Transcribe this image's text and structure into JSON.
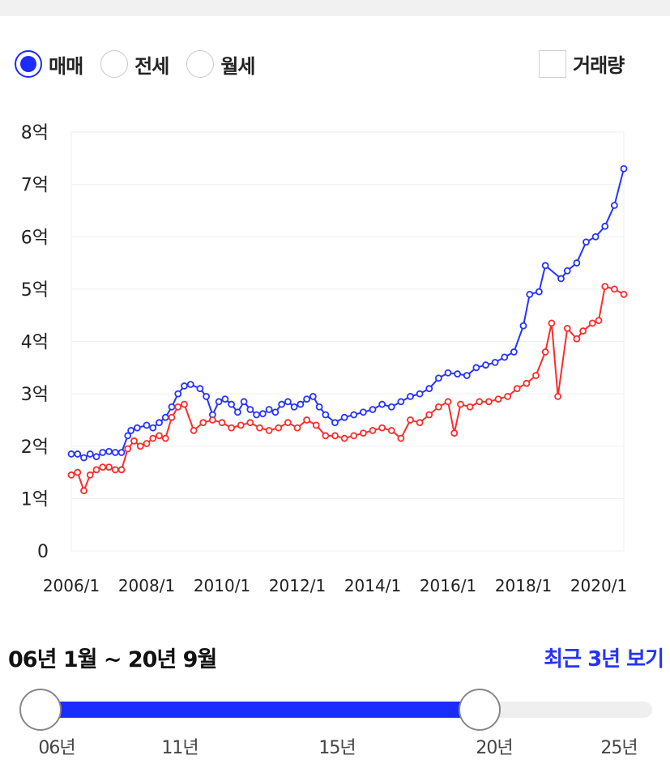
{
  "tabs": {
    "options": [
      {
        "label": "매매",
        "checked": true
      },
      {
        "label": "전세",
        "checked": false
      },
      {
        "label": "월세",
        "checked": false
      }
    ],
    "volume_label": "거래량",
    "volume_checked": false
  },
  "colors": {
    "sale": "#2533ff",
    "jeonse": "#ff2b2b",
    "accent": "#1b2cff"
  },
  "chart_data": {
    "type": "line",
    "x_ticks": [
      "2006/1",
      "2008/1",
      "2010/1",
      "2012/1",
      "2014/1",
      "2016/1",
      "2018/1",
      "2020/1"
    ],
    "y_ticks": [
      "0",
      "1억",
      "2억",
      "3억",
      "4억",
      "5억",
      "6억",
      "7억",
      "8억"
    ],
    "ylim": [
      0,
      8
    ],
    "y_unit": "억",
    "grid": true,
    "series": [
      {
        "color": "#2533ff",
        "points": [
          [
            "2006-01",
            1.85
          ],
          [
            "2006-03",
            1.85
          ],
          [
            "2006-05",
            1.78
          ],
          [
            "2006-07",
            1.85
          ],
          [
            "2006-09",
            1.8
          ],
          [
            "2006-11",
            1.88
          ],
          [
            "2007-01",
            1.9
          ],
          [
            "2007-03",
            1.88
          ],
          [
            "2007-05",
            1.88
          ],
          [
            "2007-07",
            2.2
          ],
          [
            "2007-08",
            2.3
          ],
          [
            "2007-10",
            2.35
          ],
          [
            "2008-01",
            2.4
          ],
          [
            "2008-03",
            2.35
          ],
          [
            "2008-05",
            2.45
          ],
          [
            "2008-07",
            2.55
          ],
          [
            "2008-09",
            2.75
          ],
          [
            "2008-11",
            3.0
          ],
          [
            "2009-01",
            3.15
          ],
          [
            "2009-03",
            3.18
          ],
          [
            "2009-06",
            3.1
          ],
          [
            "2009-08",
            2.95
          ],
          [
            "2009-10",
            2.6
          ],
          [
            "2009-12",
            2.85
          ],
          [
            "2010-02",
            2.9
          ],
          [
            "2010-04",
            2.8
          ],
          [
            "2010-06",
            2.65
          ],
          [
            "2010-08",
            2.85
          ],
          [
            "2010-10",
            2.7
          ],
          [
            "2010-12",
            2.6
          ],
          [
            "2011-02",
            2.62
          ],
          [
            "2011-04",
            2.7
          ],
          [
            "2011-06",
            2.65
          ],
          [
            "2011-08",
            2.8
          ],
          [
            "2011-10",
            2.85
          ],
          [
            "2011-12",
            2.75
          ],
          [
            "2012-02",
            2.8
          ],
          [
            "2012-04",
            2.9
          ],
          [
            "2012-06",
            2.95
          ],
          [
            "2012-08",
            2.75
          ],
          [
            "2012-10",
            2.6
          ],
          [
            "2013-01",
            2.45
          ],
          [
            "2013-04",
            2.55
          ],
          [
            "2013-07",
            2.6
          ],
          [
            "2013-10",
            2.65
          ],
          [
            "2014-01",
            2.7
          ],
          [
            "2014-04",
            2.8
          ],
          [
            "2014-07",
            2.75
          ],
          [
            "2014-10",
            2.85
          ],
          [
            "2015-01",
            2.95
          ],
          [
            "2015-04",
            3.0
          ],
          [
            "2015-07",
            3.1
          ],
          [
            "2015-10",
            3.3
          ],
          [
            "2016-01",
            3.4
          ],
          [
            "2016-04",
            3.38
          ],
          [
            "2016-07",
            3.35
          ],
          [
            "2016-10",
            3.5
          ],
          [
            "2017-01",
            3.55
          ],
          [
            "2017-04",
            3.6
          ],
          [
            "2017-07",
            3.7
          ],
          [
            "2017-10",
            3.8
          ],
          [
            "2018-01",
            4.3
          ],
          [
            "2018-03",
            4.9
          ],
          [
            "2018-06",
            4.95
          ],
          [
            "2018-08",
            5.45
          ],
          [
            "2019-01",
            5.2
          ],
          [
            "2019-03",
            5.35
          ],
          [
            "2019-06",
            5.5
          ],
          [
            "2019-09",
            5.9
          ],
          [
            "2019-12",
            6.0
          ],
          [
            "2020-03",
            6.2
          ],
          [
            "2020-06",
            6.6
          ],
          [
            "2020-09",
            7.3
          ]
        ]
      },
      {
        "color": "#ff2b2b",
        "points": [
          [
            "2006-01",
            1.45
          ],
          [
            "2006-03",
            1.5
          ],
          [
            "2006-05",
            1.15
          ],
          [
            "2006-07",
            1.45
          ],
          [
            "2006-09",
            1.55
          ],
          [
            "2006-11",
            1.6
          ],
          [
            "2007-01",
            1.6
          ],
          [
            "2007-03",
            1.55
          ],
          [
            "2007-05",
            1.55
          ],
          [
            "2007-07",
            1.95
          ],
          [
            "2007-09",
            2.1
          ],
          [
            "2007-11",
            2.0
          ],
          [
            "2008-01",
            2.05
          ],
          [
            "2008-03",
            2.15
          ],
          [
            "2008-05",
            2.2
          ],
          [
            "2008-07",
            2.15
          ],
          [
            "2008-09",
            2.55
          ],
          [
            "2008-11",
            2.75
          ],
          [
            "2009-01",
            2.8
          ],
          [
            "2009-04",
            2.3
          ],
          [
            "2009-07",
            2.45
          ],
          [
            "2009-10",
            2.5
          ],
          [
            "2010-01",
            2.45
          ],
          [
            "2010-04",
            2.35
          ],
          [
            "2010-07",
            2.4
          ],
          [
            "2010-10",
            2.45
          ],
          [
            "2011-01",
            2.35
          ],
          [
            "2011-04",
            2.3
          ],
          [
            "2011-07",
            2.35
          ],
          [
            "2011-10",
            2.45
          ],
          [
            "2012-01",
            2.35
          ],
          [
            "2012-04",
            2.5
          ],
          [
            "2012-07",
            2.4
          ],
          [
            "2012-10",
            2.2
          ],
          [
            "2013-01",
            2.2
          ],
          [
            "2013-04",
            2.15
          ],
          [
            "2013-07",
            2.2
          ],
          [
            "2013-10",
            2.25
          ],
          [
            "2014-01",
            2.3
          ],
          [
            "2014-04",
            2.35
          ],
          [
            "2014-07",
            2.3
          ],
          [
            "2014-10",
            2.15
          ],
          [
            "2015-01",
            2.5
          ],
          [
            "2015-04",
            2.45
          ],
          [
            "2015-07",
            2.6
          ],
          [
            "2015-10",
            2.75
          ],
          [
            "2016-01",
            2.85
          ],
          [
            "2016-03",
            2.25
          ],
          [
            "2016-05",
            2.8
          ],
          [
            "2016-08",
            2.75
          ],
          [
            "2016-11",
            2.85
          ],
          [
            "2017-02",
            2.85
          ],
          [
            "2017-05",
            2.9
          ],
          [
            "2017-08",
            2.95
          ],
          [
            "2017-11",
            3.1
          ],
          [
            "2018-02",
            3.2
          ],
          [
            "2018-05",
            3.35
          ],
          [
            "2018-08",
            3.8
          ],
          [
            "2018-10",
            4.35
          ],
          [
            "2018-12",
            2.95
          ],
          [
            "2019-03",
            4.25
          ],
          [
            "2019-06",
            4.05
          ],
          [
            "2019-08",
            4.2
          ],
          [
            "2019-11",
            4.35
          ],
          [
            "2020-01",
            4.4
          ],
          [
            "2020-03",
            5.05
          ],
          [
            "2020-06",
            5.0
          ],
          [
            "2020-09",
            4.9
          ]
        ]
      }
    ]
  },
  "period": {
    "label": "06년 1월 ~ 20년 9월",
    "recent_link": "최근 3년 보기"
  },
  "slider": {
    "ticks": [
      "06년",
      "11년",
      "15년",
      "20년",
      "25년"
    ],
    "start_fraction": 0.0,
    "end_fraction": 0.72
  }
}
